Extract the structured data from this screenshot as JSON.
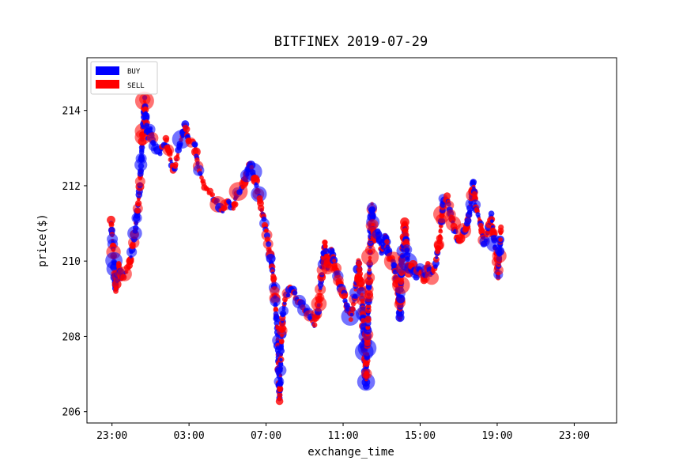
{
  "chart_data": {
    "type": "scatter",
    "title": "BITFINEX 2019-07-29",
    "xlabel": "exchange_time",
    "ylabel": "price($)",
    "xlim_hours": [
      21.7,
      49.2
    ],
    "ylim": [
      205.7,
      215.4
    ],
    "x_ticks": [
      {
        "hours": 23,
        "label": "23:00"
      },
      {
        "hours": 27,
        "label": "03:00"
      },
      {
        "hours": 31,
        "label": "07:00"
      },
      {
        "hours": 35,
        "label": "11:00"
      },
      {
        "hours": 39,
        "label": "15:00"
      },
      {
        "hours": 43,
        "label": "19:00"
      },
      {
        "hours": 47,
        "label": "23:00"
      }
    ],
    "y_ticks": [
      206,
      208,
      210,
      212,
      214
    ],
    "grid": false,
    "legend_position": "top-left",
    "series": [
      {
        "name": "BUY",
        "color": "#0000ff"
      },
      {
        "name": "SELL",
        "color": "#ff0000"
      }
    ],
    "price_path": [
      [
        22.95,
        211.1
      ],
      [
        23.05,
        210.4
      ],
      [
        23.2,
        209.2
      ],
      [
        23.35,
        209.9
      ],
      [
        23.5,
        209.5
      ],
      [
        23.7,
        209.7
      ],
      [
        23.9,
        209.9
      ],
      [
        24.0,
        210.2
      ],
      [
        24.15,
        210.6
      ],
      [
        24.3,
        211.2
      ],
      [
        24.45,
        212.0
      ],
      [
        24.55,
        213.0
      ],
      [
        24.7,
        214.3
      ],
      [
        24.85,
        213.3
      ],
      [
        25.0,
        213.5
      ],
      [
        25.2,
        213.0
      ],
      [
        25.5,
        212.9
      ],
      [
        25.8,
        213.2
      ],
      [
        26.0,
        212.8
      ],
      [
        26.2,
        212.4
      ],
      [
        26.5,
        213.0
      ],
      [
        26.8,
        213.6
      ],
      [
        27.0,
        213.2
      ],
      [
        27.3,
        213.1
      ],
      [
        27.5,
        212.4
      ],
      [
        27.8,
        212.0
      ],
      [
        28.1,
        211.8
      ],
      [
        28.4,
        211.6
      ],
      [
        28.7,
        211.3
      ],
      [
        29.0,
        211.6
      ],
      [
        29.3,
        211.4
      ],
      [
        29.5,
        211.8
      ],
      [
        29.8,
        212.0
      ],
      [
        30.0,
        212.3
      ],
      [
        30.2,
        212.6
      ],
      [
        30.4,
        212.2
      ],
      [
        30.6,
        211.8
      ],
      [
        30.8,
        211.3
      ],
      [
        31.0,
        210.8
      ],
      [
        31.2,
        210.2
      ],
      [
        31.4,
        209.5
      ],
      [
        31.6,
        208.0
      ],
      [
        31.7,
        206.3
      ],
      [
        31.85,
        208.5
      ],
      [
        32.0,
        209.0
      ],
      [
        32.3,
        209.3
      ],
      [
        32.6,
        209.0
      ],
      [
        32.9,
        208.8
      ],
      [
        33.2,
        208.6
      ],
      [
        33.5,
        208.3
      ],
      [
        33.7,
        208.7
      ],
      [
        33.9,
        209.7
      ],
      [
        34.05,
        210.5
      ],
      [
        34.2,
        209.8
      ],
      [
        34.4,
        210.3
      ],
      [
        34.6,
        209.8
      ],
      [
        34.8,
        209.4
      ],
      [
        35.0,
        209.2
      ],
      [
        35.2,
        208.8
      ],
      [
        35.4,
        208.5
      ],
      [
        35.6,
        209.0
      ],
      [
        35.8,
        210.0
      ],
      [
        36.0,
        209.0
      ],
      [
        36.1,
        207.5
      ],
      [
        36.2,
        206.7
      ],
      [
        36.35,
        209.5
      ],
      [
        36.5,
        211.5
      ],
      [
        36.6,
        210.5
      ],
      [
        36.8,
        210.8
      ],
      [
        37.0,
        210.2
      ],
      [
        37.2,
        210.7
      ],
      [
        37.4,
        210.1
      ],
      [
        37.6,
        210.0
      ],
      [
        37.8,
        209.4
      ],
      [
        37.95,
        208.5
      ],
      [
        38.05,
        210.0
      ],
      [
        38.2,
        211.0
      ],
      [
        38.4,
        209.7
      ],
      [
        38.6,
        209.9
      ],
      [
        38.8,
        209.6
      ],
      [
        39.0,
        209.8
      ],
      [
        39.2,
        209.5
      ],
      [
        39.4,
        209.9
      ],
      [
        39.6,
        209.6
      ],
      [
        39.8,
        209.9
      ],
      [
        40.0,
        210.5
      ],
      [
        40.2,
        211.6
      ],
      [
        40.4,
        211.7
      ],
      [
        40.6,
        211.2
      ],
      [
        40.8,
        210.8
      ],
      [
        41.0,
        210.5
      ],
      [
        41.2,
        210.7
      ],
      [
        41.4,
        210.9
      ],
      [
        41.6,
        211.4
      ],
      [
        41.75,
        212.1
      ],
      [
        41.9,
        211.4
      ],
      [
        42.1,
        211.1
      ],
      [
        42.3,
        210.5
      ],
      [
        42.5,
        210.7
      ],
      [
        42.7,
        211.2
      ],
      [
        42.9,
        210.3
      ],
      [
        43.05,
        209.6
      ],
      [
        43.2,
        210.9
      ]
    ]
  }
}
